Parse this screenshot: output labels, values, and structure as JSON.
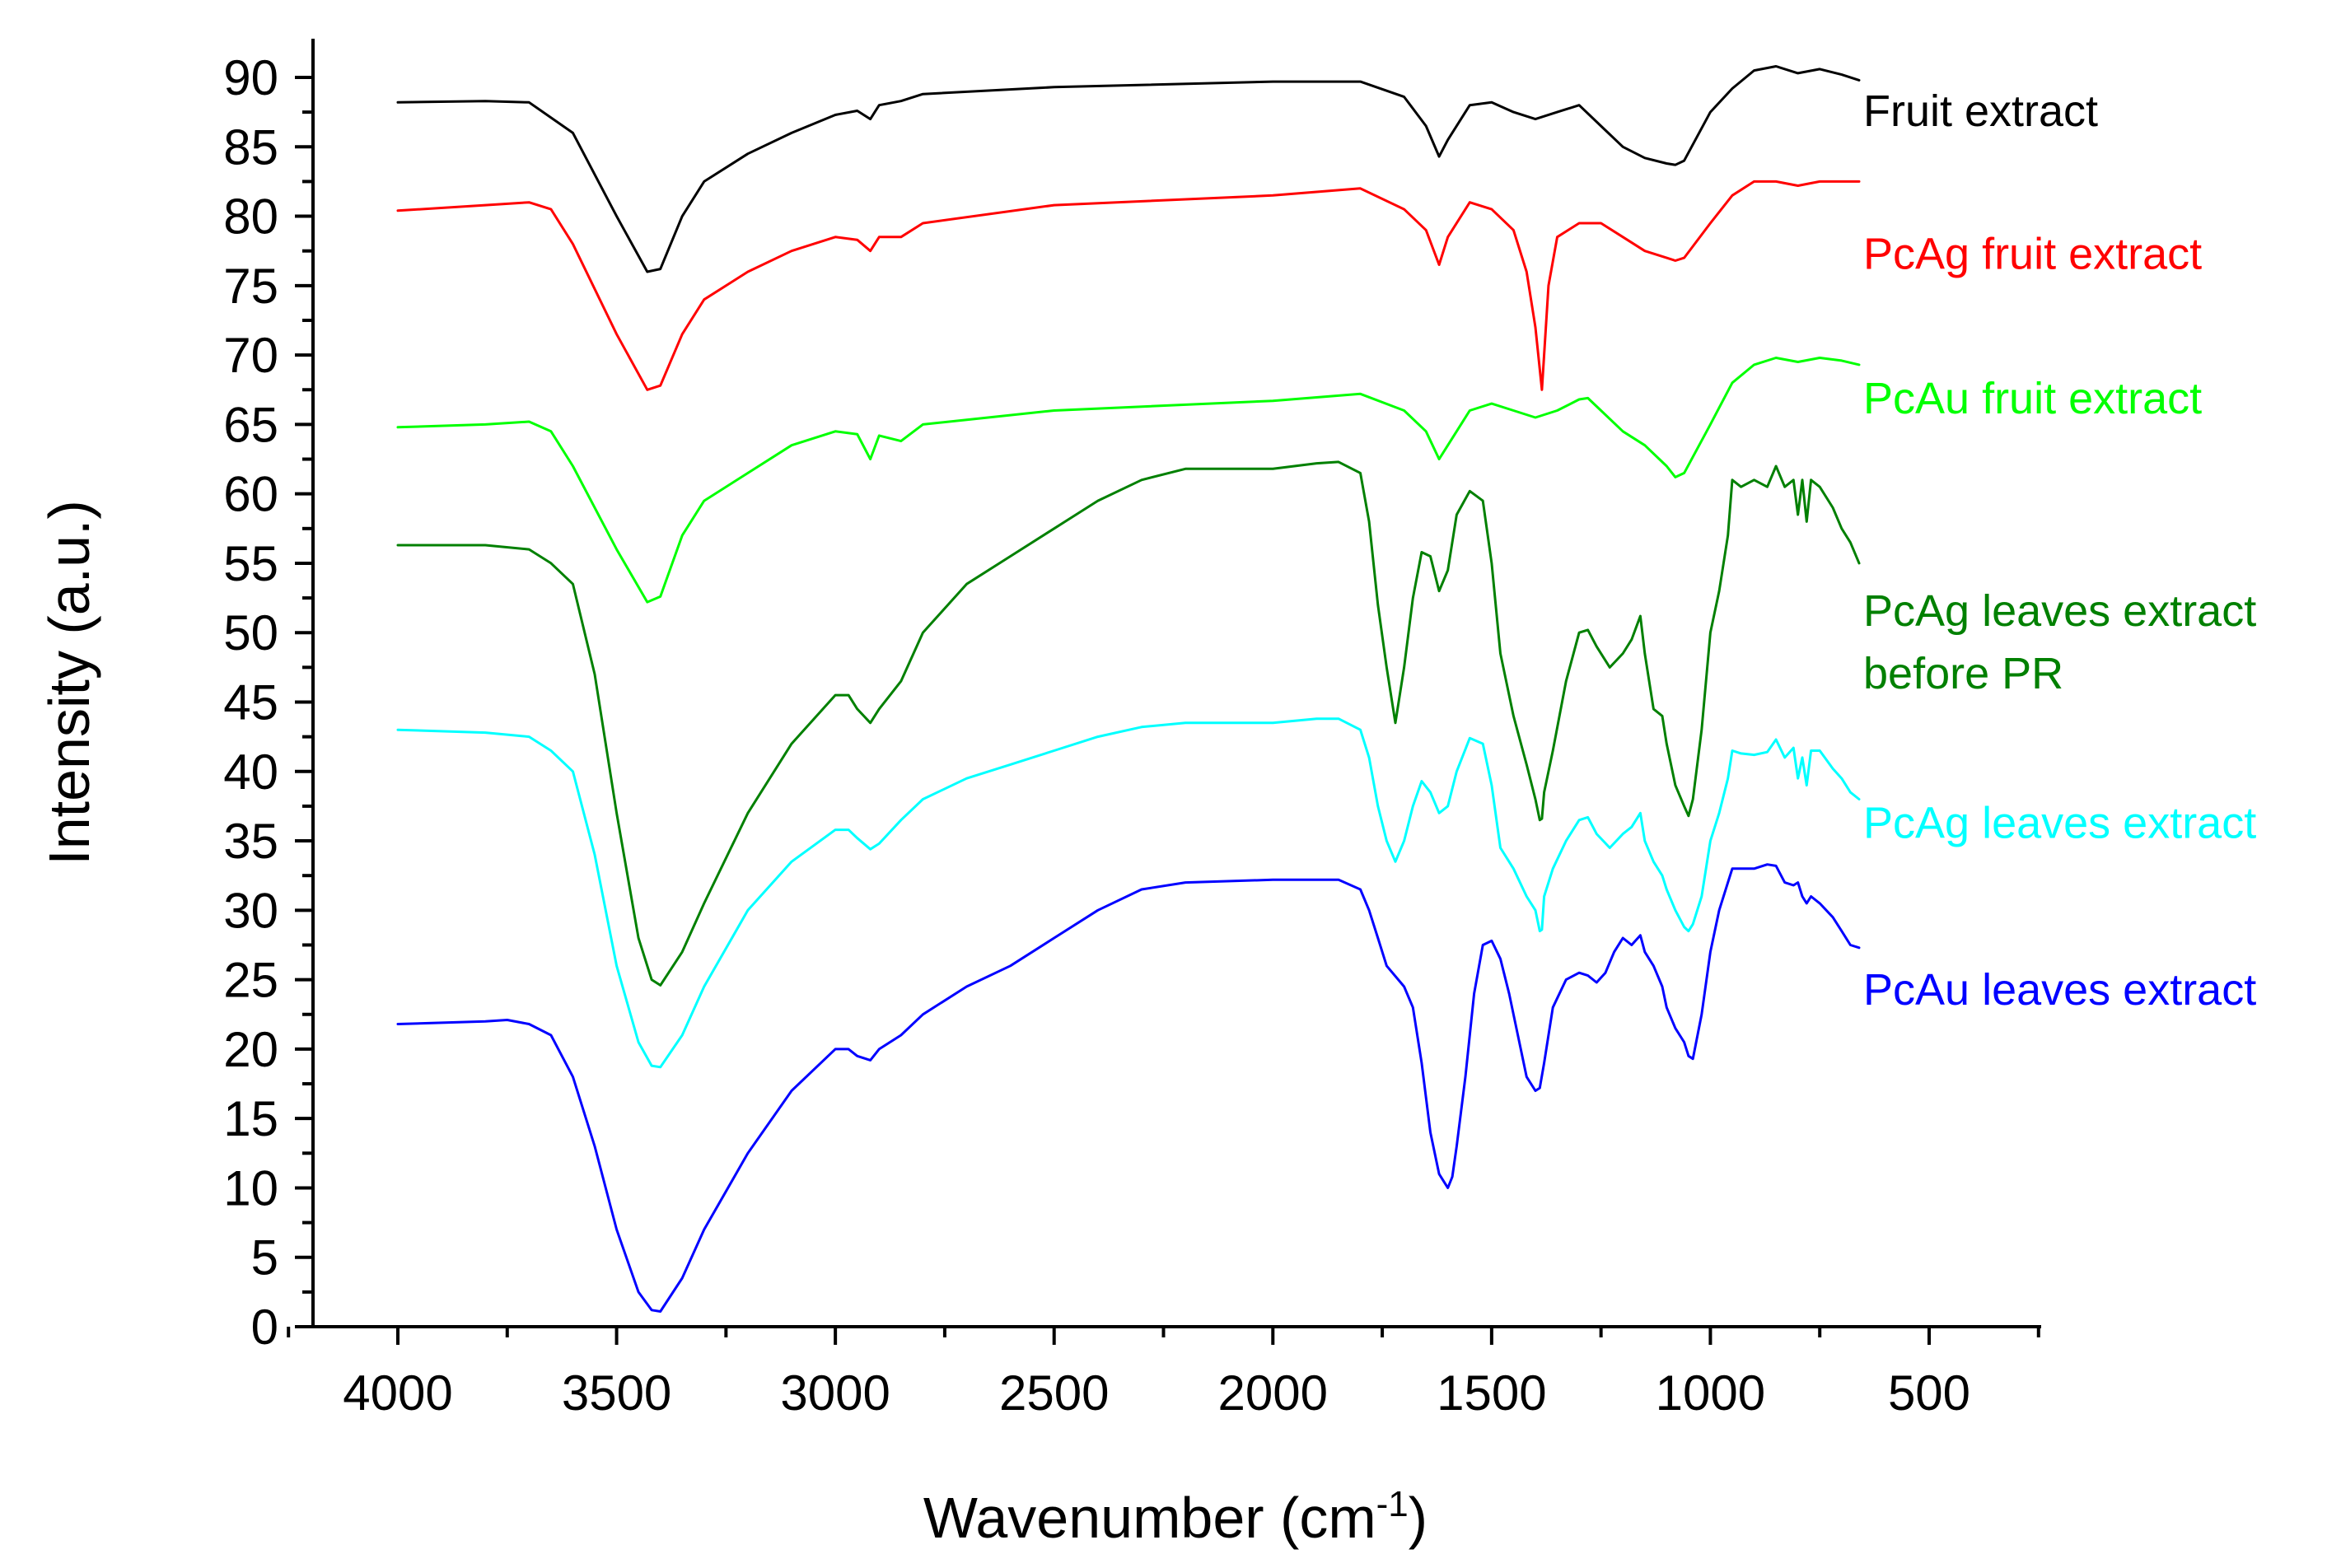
{
  "chart_data": {
    "type": "line",
    "title": "",
    "xlabel": "Wavenumber (cm",
    "xlabel_superscript": "-1",
    "xlabel_suffix": ")",
    "ylabel": "Intensity (a.u.)",
    "xlim": [
      4200,
      250
    ],
    "ylim": [
      0,
      90
    ],
    "x_ticks": [
      4000,
      3500,
      3000,
      2500,
      2000,
      1500,
      1000,
      500
    ],
    "x_tick_labels": [
      "4000",
      "3500",
      "3000",
      "2500",
      "2000",
      "1500",
      "1000",
      "500"
    ],
    "y_ticks": [
      0,
      5,
      10,
      15,
      20,
      25,
      30,
      35,
      40,
      45,
      50,
      55,
      60,
      65,
      70,
      75,
      80,
      85,
      90
    ],
    "y_tick_labels": [
      "0",
      "5",
      "10",
      "15",
      "20",
      "25",
      "30",
      "35",
      "40",
      "45",
      "50",
      "55",
      "60",
      "65",
      "70",
      "75",
      "80",
      "85",
      "90"
    ],
    "grid": false,
    "legend_placement": "right, beside each curve",
    "series": [
      {
        "name": "Fruit extract",
        "color": "#000000",
        "label_lines": [
          "Fruit extract"
        ],
        "label_anchor": [
          1760,
          86.5
        ],
        "x": [
          4000,
          3800,
          3700,
          3600,
          3500,
          3430,
          3400,
          3350,
          3300,
          3200,
          3100,
          3000,
          2950,
          2920,
          2900,
          2850,
          2800,
          2500,
          2000,
          1800,
          1700,
          1650,
          1620,
          1600,
          1550,
          1500,
          1450,
          1400,
          1350,
          1300,
          1250,
          1200,
          1150,
          1100,
          1080,
          1060,
          1000,
          950,
          900,
          850,
          800,
          750,
          700,
          660
        ],
        "y": [
          88.2,
          88.3,
          88.2,
          86,
          80,
          76,
          76.2,
          80,
          82.5,
          84.5,
          86,
          87.3,
          87.6,
          87,
          88,
          88.3,
          88.8,
          89.3,
          89.7,
          89.7,
          88.6,
          86.5,
          84.3,
          85.5,
          88,
          88.2,
          87.5,
          87,
          87.5,
          88,
          86.5,
          85,
          84.2,
          83.8,
          83.7,
          84,
          87.5,
          89.2,
          90.5,
          90.8,
          90.3,
          90.6,
          90.2,
          89.8
        ]
      },
      {
        "name": "PcAg fruit extract",
        "color": "#ff0000",
        "label_lines": [
          "PcAg fruit extract"
        ],
        "label_anchor": [
          1760,
          76.2
        ],
        "x": [
          4000,
          3800,
          3700,
          3650,
          3600,
          3500,
          3430,
          3400,
          3350,
          3300,
          3200,
          3100,
          3000,
          2950,
          2920,
          2900,
          2850,
          2800,
          2500,
          2000,
          1800,
          1700,
          1650,
          1620,
          1600,
          1550,
          1500,
          1450,
          1420,
          1400,
          1385,
          1370,
          1350,
          1300,
          1250,
          1200,
          1150,
          1100,
          1080,
          1060,
          1000,
          950,
          900,
          850,
          800,
          750,
          700,
          660
        ],
        "y": [
          80.4,
          80.8,
          81,
          80.5,
          78,
          71.5,
          67.5,
          67.8,
          71.5,
          74,
          76,
          77.5,
          78.5,
          78.3,
          77.5,
          78.5,
          78.5,
          79.5,
          80.8,
          81.5,
          82,
          80.5,
          79,
          76.5,
          78.5,
          81,
          80.5,
          79,
          76,
          72,
          67.5,
          75,
          78.5,
          79.5,
          79.5,
          78.5,
          77.5,
          77,
          76.8,
          77,
          79.5,
          81.5,
          82.5,
          82.5,
          82.2,
          82.5,
          82.5,
          82.5
        ]
      },
      {
        "name": "PcAu fruit extract",
        "color": "#00ff00",
        "label_lines": [
          "PcAu fruit extract"
        ],
        "label_anchor": [
          1760,
          65.8
        ],
        "x": [
          4000,
          3800,
          3700,
          3650,
          3600,
          3500,
          3430,
          3400,
          3350,
          3300,
          3200,
          3100,
          3000,
          2950,
          2920,
          2900,
          2850,
          2800,
          2500,
          2000,
          1800,
          1700,
          1650,
          1620,
          1600,
          1550,
          1500,
          1450,
          1400,
          1350,
          1300,
          1280,
          1250,
          1200,
          1150,
          1100,
          1080,
          1060,
          1000,
          950,
          900,
          850,
          800,
          750,
          700,
          660
        ],
        "y": [
          64.8,
          65,
          65.2,
          64.5,
          62,
          56,
          52.2,
          52.6,
          57,
          59.5,
          61.5,
          63.5,
          64.5,
          64.3,
          62.5,
          64.2,
          63.8,
          65,
          66,
          66.7,
          67.2,
          66,
          64.5,
          62.5,
          63.5,
          66,
          66.5,
          66,
          65.5,
          66,
          66.8,
          66.9,
          66,
          64.5,
          63.5,
          62,
          61.2,
          61.5,
          65,
          68,
          69.3,
          69.8,
          69.5,
          69.8,
          69.6,
          69.3
        ]
      },
      {
        "name": "PcAg leaves extract before PR",
        "color": "#008000",
        "label_lines": [
          "PcAg leaves extract",
          "before PR"
        ],
        "label_anchor": [
          1760,
          50.5
        ],
        "x": [
          4000,
          3800,
          3700,
          3650,
          3600,
          3550,
          3500,
          3450,
          3420,
          3400,
          3350,
          3300,
          3200,
          3100,
          3000,
          2970,
          2950,
          2920,
          2900,
          2850,
          2800,
          2700,
          2600,
          2500,
          2400,
          2300,
          2200,
          2000,
          1900,
          1850,
          1800,
          1780,
          1760,
          1740,
          1720,
          1700,
          1680,
          1660,
          1640,
          1620,
          1600,
          1580,
          1550,
          1520,
          1500,
          1480,
          1450,
          1420,
          1400,
          1390,
          1385,
          1380,
          1360,
          1330,
          1300,
          1280,
          1260,
          1230,
          1200,
          1180,
          1160,
          1150,
          1130,
          1110,
          1100,
          1080,
          1060,
          1050,
          1040,
          1020,
          1000,
          980,
          960,
          950,
          930,
          900,
          870,
          850,
          830,
          810,
          800,
          790,
          780,
          770,
          750,
          720,
          700,
          680,
          660
        ],
        "y": [
          56.3,
          56.3,
          56,
          55,
          53.5,
          47,
          37,
          28,
          25,
          24.6,
          27,
          30.5,
          37,
          42,
          45.5,
          45.5,
          44.5,
          43.5,
          44.5,
          46.5,
          50,
          53.5,
          55.5,
          57.5,
          59.5,
          61,
          61.8,
          61.8,
          62.2,
          62.3,
          61.5,
          58,
          52,
          47.5,
          43.5,
          47.5,
          52.5,
          55.8,
          55.5,
          53,
          54.5,
          58.5,
          60.2,
          59.5,
          55,
          48.5,
          44,
          40.5,
          38,
          36.5,
          36.6,
          38.5,
          41.5,
          46.5,
          50,
          50.2,
          49,
          47.5,
          48.5,
          49.5,
          51.2,
          48.5,
          44.5,
          44,
          42,
          39,
          37.5,
          36.8,
          38,
          43,
          50,
          53,
          57,
          61,
          60.5,
          61,
          60.5,
          62,
          60.5,
          61,
          58.5,
          61,
          58,
          61,
          60.5,
          59,
          57.5,
          56.5,
          55
        ]
      },
      {
        "name": "PcAg leaves extract",
        "color": "#00ffff",
        "label_lines": [
          "PcAg leaves extract"
        ],
        "label_anchor": [
          1760,
          35.2
        ],
        "x": [
          4000,
          3800,
          3700,
          3650,
          3600,
          3550,
          3500,
          3450,
          3420,
          3400,
          3350,
          3300,
          3200,
          3100,
          3000,
          2970,
          2950,
          2920,
          2900,
          2850,
          2800,
          2700,
          2600,
          2500,
          2400,
          2300,
          2200,
          2000,
          1900,
          1850,
          1800,
          1780,
          1760,
          1740,
          1720,
          1700,
          1680,
          1660,
          1640,
          1620,
          1600,
          1580,
          1550,
          1520,
          1500,
          1480,
          1450,
          1420,
          1400,
          1390,
          1385,
          1380,
          1360,
          1330,
          1300,
          1280,
          1260,
          1230,
          1200,
          1180,
          1160,
          1150,
          1130,
          1110,
          1100,
          1080,
          1060,
          1050,
          1040,
          1020,
          1000,
          980,
          960,
          950,
          930,
          900,
          870,
          850,
          830,
          810,
          800,
          790,
          780,
          770,
          750,
          720,
          700,
          680,
          660
        ],
        "y": [
          43,
          42.8,
          42.5,
          41.5,
          40,
          34,
          26,
          20.5,
          18.8,
          18.7,
          21,
          24.5,
          30,
          33.5,
          35.8,
          35.8,
          35.2,
          34.4,
          34.8,
          36.5,
          38,
          39.5,
          40.5,
          41.5,
          42.5,
          43.2,
          43.5,
          43.5,
          43.8,
          43.8,
          43,
          41,
          37.5,
          35,
          33.5,
          35,
          37.5,
          39.3,
          38.5,
          37,
          37.5,
          40,
          42.4,
          42,
          39,
          34.5,
          33,
          31,
          30,
          28.5,
          28.6,
          31,
          33,
          35,
          36.5,
          36.7,
          35.5,
          34.5,
          35.5,
          36,
          37,
          35,
          33.5,
          32.5,
          31.5,
          30,
          28.8,
          28.5,
          29,
          31,
          35,
          37,
          39.5,
          41.5,
          41.3,
          41.2,
          41.4,
          42.3,
          41,
          41.7,
          39.5,
          41,
          39,
          41.5,
          41.5,
          40.2,
          39.5,
          38.5,
          38
        ]
      },
      {
        "name": "PcAu leaves extract",
        "color": "#0000ff",
        "label_lines": [
          "PcAu leaves extract"
        ],
        "label_anchor": [
          1760,
          23.2
        ],
        "x": [
          4000,
          3800,
          3750,
          3700,
          3650,
          3600,
          3550,
          3500,
          3450,
          3420,
          3400,
          3350,
          3300,
          3200,
          3100,
          3000,
          2970,
          2950,
          2920,
          2900,
          2850,
          2800,
          2700,
          2600,
          2500,
          2400,
          2300,
          2200,
          2000,
          1900,
          1850,
          1800,
          1780,
          1760,
          1740,
          1700,
          1680,
          1660,
          1640,
          1620,
          1600,
          1590,
          1580,
          1560,
          1540,
          1520,
          1500,
          1480,
          1460,
          1440,
          1420,
          1400,
          1390,
          1380,
          1360,
          1330,
          1300,
          1280,
          1260,
          1240,
          1220,
          1200,
          1180,
          1160,
          1150,
          1130,
          1110,
          1100,
          1080,
          1060,
          1050,
          1040,
          1020,
          1000,
          980,
          960,
          950,
          930,
          900,
          870,
          850,
          830,
          810,
          800,
          790,
          780,
          770,
          750,
          720,
          700,
          680,
          660
        ],
        "y": [
          21.8,
          22,
          22.1,
          21.8,
          21,
          18,
          13,
          7,
          2.5,
          1.2,
          1.1,
          3.5,
          7,
          12.5,
          17,
          20,
          20,
          19.5,
          19.2,
          20,
          21,
          22.5,
          24.5,
          26,
          28,
          30,
          31.5,
          32,
          32.2,
          32.2,
          32.2,
          31.5,
          30,
          28,
          26,
          24.5,
          23,
          19,
          14,
          11,
          10,
          10.8,
          13,
          18,
          24,
          27.5,
          27.8,
          26.5,
          24,
          21,
          18,
          17,
          17.2,
          19,
          23,
          25,
          25.5,
          25.3,
          24.8,
          25.5,
          27,
          28,
          27.5,
          28.2,
          27,
          26,
          24.5,
          23,
          21.5,
          20.5,
          19.5,
          19.3,
          22.5,
          27,
          30,
          32,
          33,
          33,
          33,
          33.3,
          33.2,
          32,
          31.8,
          32,
          31,
          30.5,
          31,
          30.5,
          29.5,
          28.5,
          27.5,
          27.3
        ]
      }
    ]
  }
}
